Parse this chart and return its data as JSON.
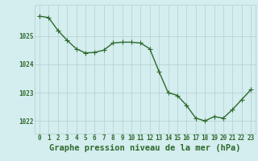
{
  "x": [
    0,
    1,
    2,
    3,
    4,
    5,
    6,
    7,
    8,
    9,
    10,
    11,
    12,
    13,
    14,
    15,
    16,
    17,
    18,
    19,
    20,
    21,
    22,
    23
  ],
  "y": [
    1025.7,
    1025.65,
    1025.2,
    1024.85,
    1024.55,
    1024.4,
    1024.42,
    1024.5,
    1024.75,
    1024.78,
    1024.78,
    1024.75,
    1024.55,
    1023.75,
    1023.0,
    1022.9,
    1022.55,
    1022.1,
    1022.0,
    1022.15,
    1022.1,
    1022.4,
    1022.75,
    1023.1
  ],
  "line_color": "#2d6a2d",
  "marker_color": "#2d6a2d",
  "bg_color": "#d4edee",
  "grid_color": "#b8d4d4",
  "xlabel": "Graphe pression niveau de la mer (hPa)",
  "ytick_labels": [
    "1022",
    "1023",
    "1024",
    "1025"
  ],
  "ytick_values": [
    1022,
    1023,
    1024,
    1025
  ],
  "ylim": [
    1021.55,
    1026.1
  ],
  "xlim": [
    -0.5,
    23.5
  ],
  "xtick_values": [
    0,
    1,
    2,
    3,
    4,
    5,
    6,
    7,
    8,
    9,
    10,
    11,
    12,
    13,
    14,
    15,
    16,
    17,
    18,
    19,
    20,
    21,
    22,
    23
  ],
  "tick_fontsize": 5.5,
  "xlabel_fontsize": 7.5,
  "line_width": 1.0,
  "marker_size": 2.5
}
